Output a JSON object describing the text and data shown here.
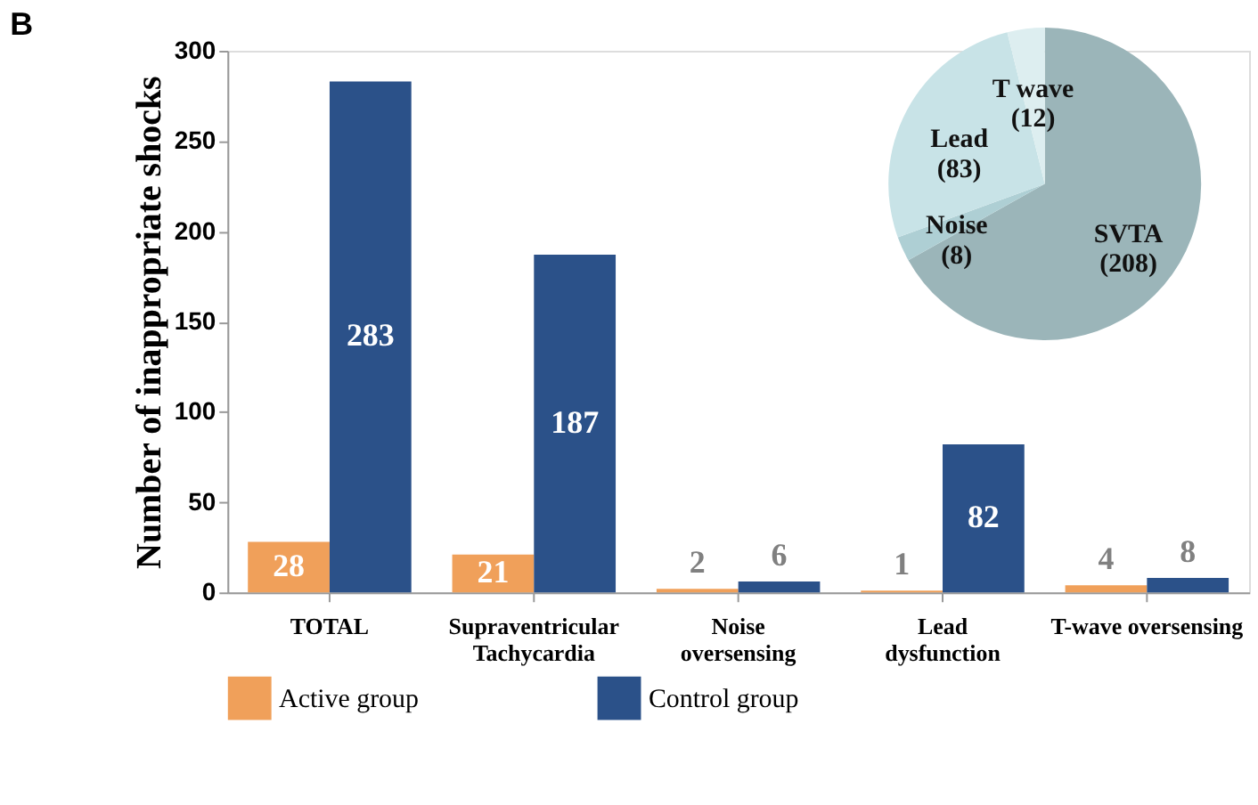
{
  "chart_data": [
    {
      "type": "bar",
      "annotations": [
        "B"
      ],
      "ylabel": "Number of inappropriate shocks",
      "categories": [
        "TOTAL",
        "Supraventricular\nTachycardia",
        "Noise\noversensing",
        "Lead\ndysfunction",
        "T-wave oversensing"
      ],
      "series": [
        {
          "name": "Active group",
          "color": "#f0a05a",
          "values": [
            28,
            21,
            2,
            1,
            4
          ]
        },
        {
          "name": "Control group",
          "color": "#2b5189",
          "values": [
            283,
            187,
            6,
            82,
            8
          ]
        }
      ],
      "ylim": [
        0,
        300
      ],
      "yticks": [
        0,
        50,
        100,
        150,
        200,
        250,
        300
      ],
      "grid": false,
      "legend": "bottom",
      "data_labels": true
    },
    {
      "type": "pie",
      "categories": [
        "SVTA",
        "Noise",
        "Lead",
        "T wave"
      ],
      "values": [
        208,
        8,
        83,
        12
      ],
      "colors": [
        "#9bb5b9",
        "#aecfd4",
        "#c8e3e7",
        "#ddeef0"
      ],
      "value_labels": [
        "(208)",
        "(8)",
        "(83)",
        "(12)"
      ]
    }
  ]
}
